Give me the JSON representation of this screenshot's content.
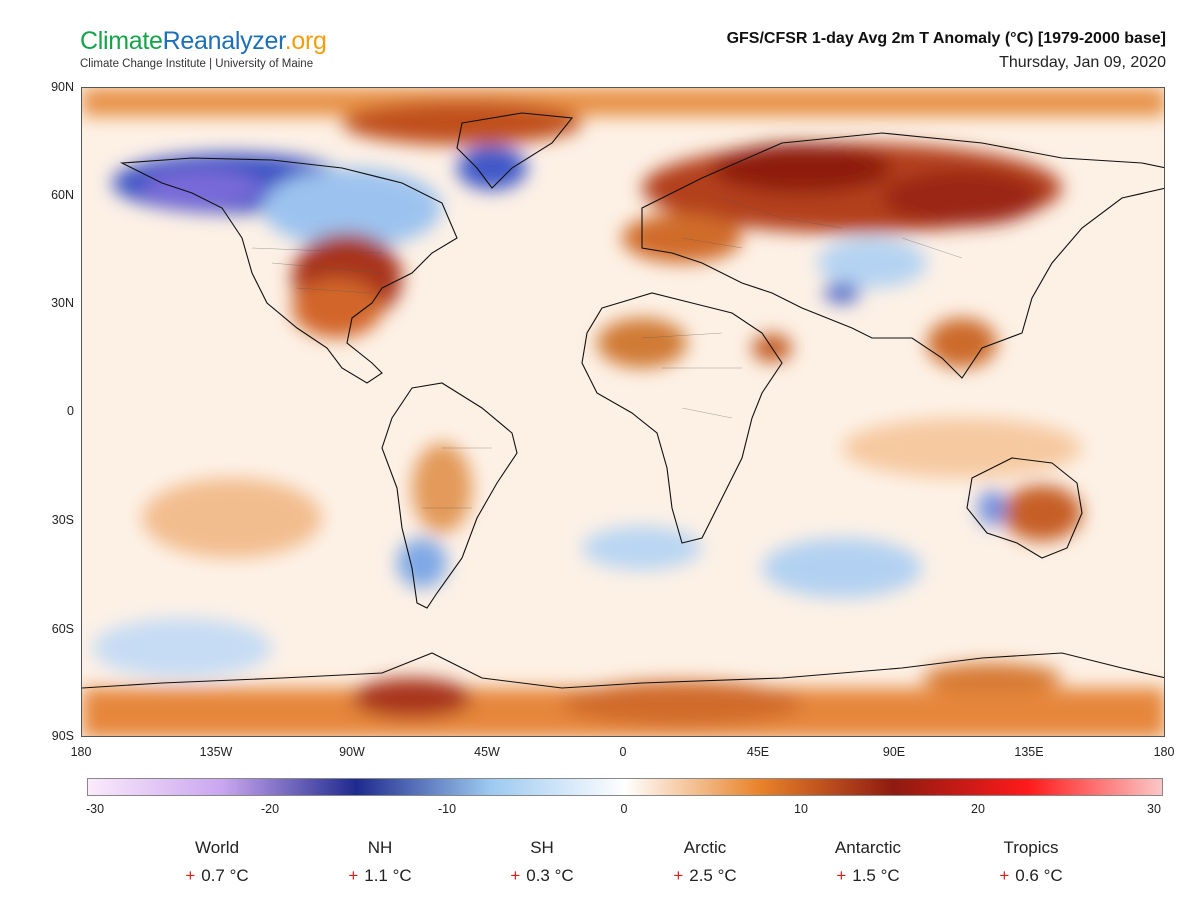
{
  "header": {
    "logo_part1": "Climate",
    "logo_part2": "Reanalyzer",
    "logo_part3": ".org",
    "logo_sub": "Climate Change Institute | University of Maine",
    "title": "GFS/CFSR 1-day Avg 2m T Anomaly (°C) [1979-2000 base]",
    "date": "Thursday, Jan 09, 2020"
  },
  "map": {
    "lat_labels": [
      "90N",
      "60N",
      "30N",
      "0",
      "30S",
      "60S",
      "90S"
    ],
    "lon_labels": [
      "180",
      "135W",
      "90W",
      "45W",
      "0",
      "45E",
      "90E",
      "135E",
      "180"
    ]
  },
  "colorbar": {
    "labels": [
      "-30",
      "-20",
      "-10",
      "0",
      "10",
      "20",
      "30"
    ],
    "colors": {
      "deep_cold": "#fbeafb",
      "cold": "#c9a6ef",
      "very_cold": "#1f2a8f",
      "cool": "#9ccaf0",
      "neutral": "#ffffff",
      "warm": "#e9832a",
      "very_warm": "#8e1b10",
      "hot": "#ff1a1a",
      "extreme": "#fbc7c7"
    }
  },
  "stats": [
    {
      "name": "World",
      "sign": "+",
      "value": "0.7 °C"
    },
    {
      "name": "NH",
      "sign": "+",
      "value": "1.1 °C"
    },
    {
      "name": "SH",
      "sign": "+",
      "value": "0.3 °C"
    },
    {
      "name": "Arctic",
      "sign": "+",
      "value": "2.5 °C"
    },
    {
      "name": "Antarctic",
      "sign": "+",
      "value": "1.5 °C"
    },
    {
      "name": "Tropics",
      "sign": "+",
      "value": "0.6 °C"
    }
  ]
}
